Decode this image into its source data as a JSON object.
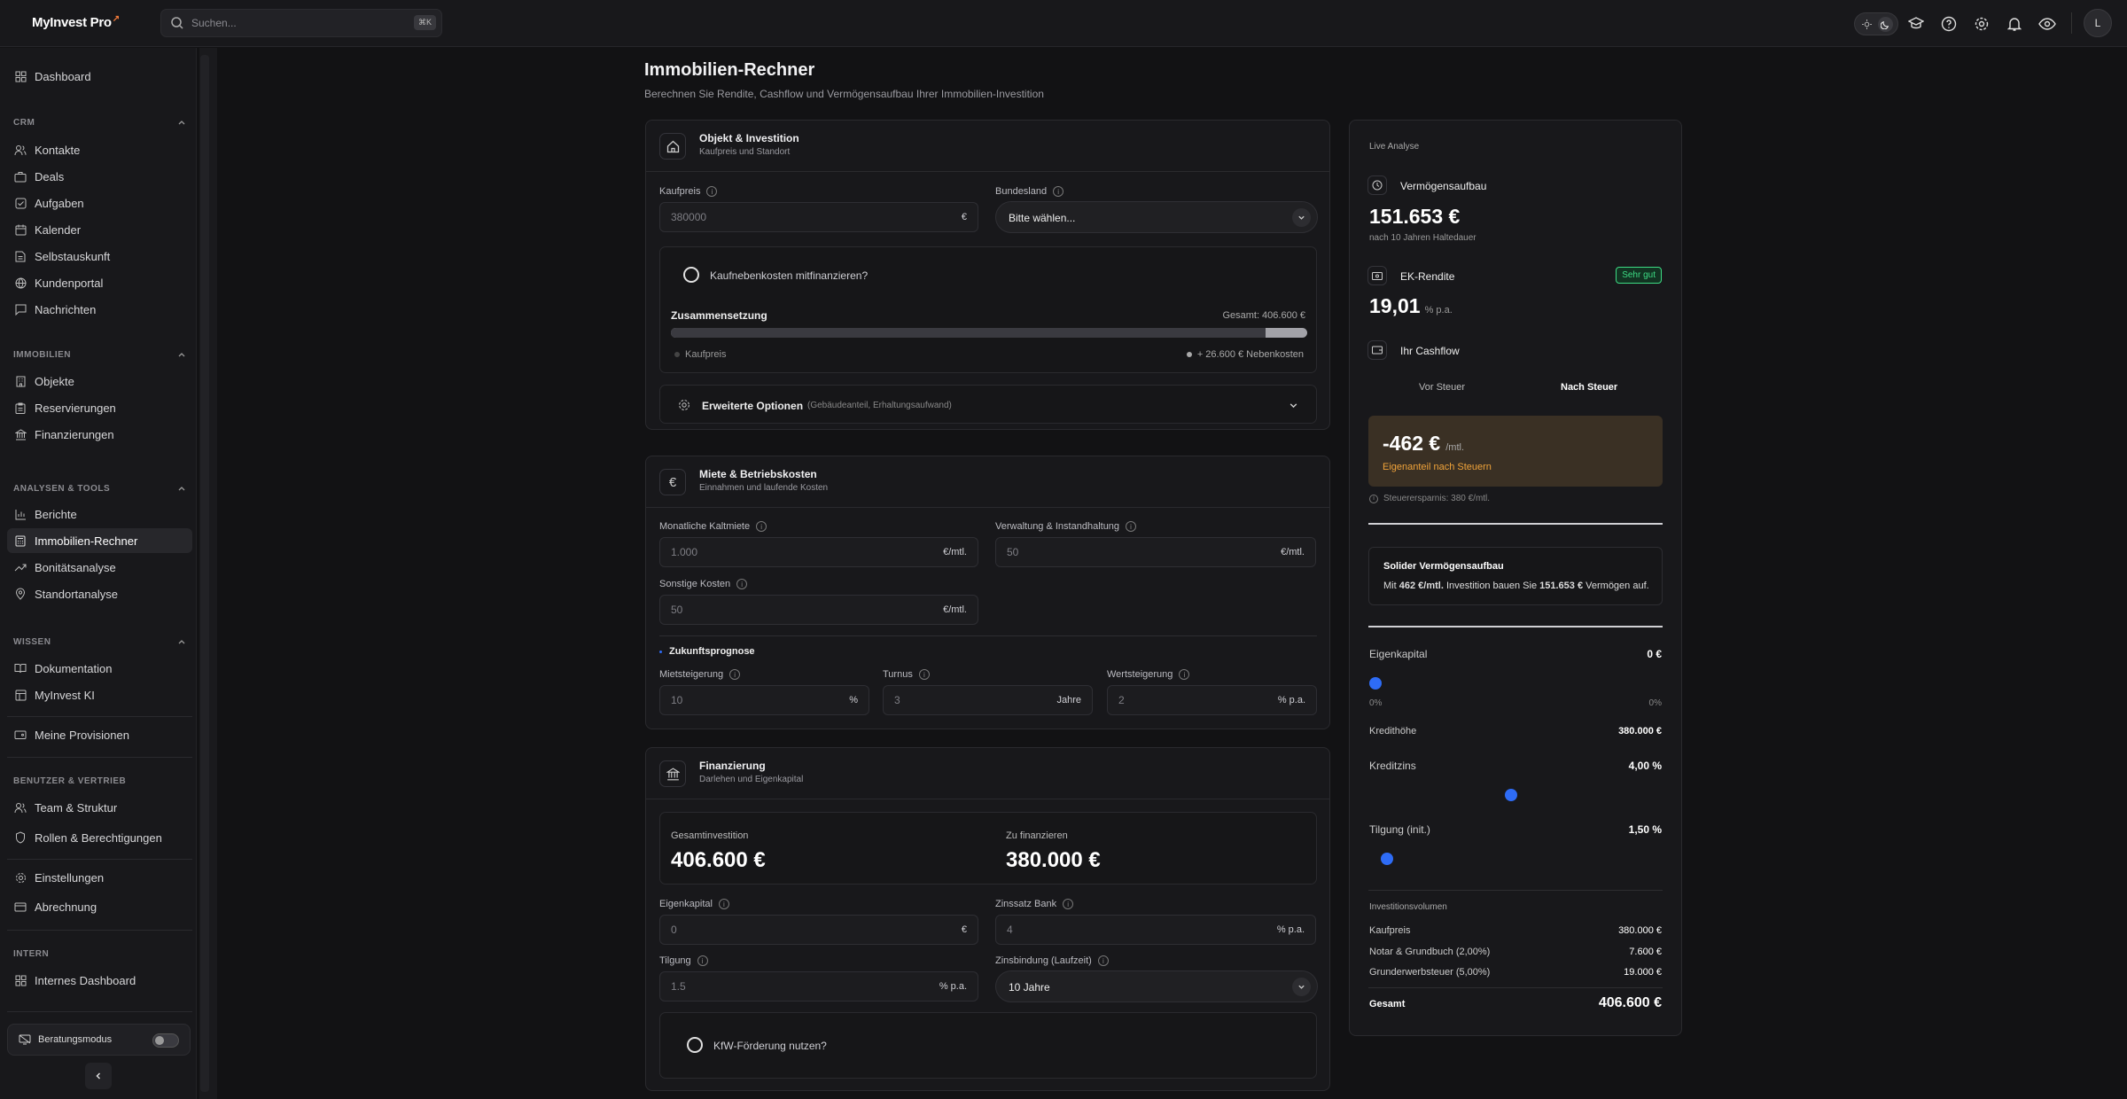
{
  "app": {
    "brand": "MyInvest Pro",
    "brand_mark": "↗"
  },
  "search": {
    "placeholder": "Suchen...",
    "shortcut": "⌘K"
  },
  "user": {
    "initial": "L"
  },
  "sidebar": {
    "dashboard": "Dashboard",
    "sections": {
      "crm": "CRM",
      "immobilien": "IMMOBILIEN",
      "analysen": "ANALYSEN & TOOLS",
      "wissen": "WISSEN",
      "benutzer": "BENUTZER & VERTRIEB",
      "intern": "INTERN"
    },
    "crm": [
      "Kontakte",
      "Deals",
      "Aufgaben",
      "Kalender",
      "Selbstauskunft",
      "Kundenportal",
      "Nachrichten"
    ],
    "immobilien": [
      "Objekte",
      "Reservierungen",
      "Finanzierungen"
    ],
    "analysen": [
      "Berichte",
      "Immobilien-Rechner",
      "Bonitätsanalyse",
      "Standortanalyse"
    ],
    "wissen": [
      "Dokumentation",
      "MyInvest KI"
    ],
    "provisionen": "Meine Provisionen",
    "benutzer": [
      "Team & Struktur",
      "Rollen & Berechtigungen"
    ],
    "einstellungen": "Einstellungen",
    "abrechnung": "Abrechnung",
    "intern": [
      "Internes Dashboard"
    ],
    "beratungsmodus": "Beratungsmodus"
  },
  "page": {
    "title": "Immobilien-Rechner",
    "subtitle": "Berechnen Sie Rendite, Cashflow und Vermögensaufbau Ihrer Immobilien-Investition"
  },
  "objekt": {
    "title": "Objekt & Investition",
    "subtitle": "Kaufpreis und Standort",
    "kaufpreis_label": "Kaufpreis",
    "kaufpreis_value": "380000",
    "kaufpreis_unit": "€",
    "bundesland_label": "Bundesland",
    "bundesland_value": "Bitte wählen...",
    "nebenkosten_toggle": "Kaufnebenkosten mitfinanzieren?",
    "zusammensetzung": "Zusammensetzung",
    "gesamt": "Gesamt: 406.600 €",
    "kaufpreis_share": 0.935,
    "legend_kaufpreis": "Kaufpreis",
    "legend_nebenkosten": "+ 26.600 € Nebenkosten",
    "erweitert": "Erweiterte Optionen",
    "erweitert_hint": "(Gebäudeanteil, Erhaltungsaufwand)"
  },
  "miete": {
    "title": "Miete & Betriebskosten",
    "subtitle": "Einnahmen und laufende Kosten",
    "kaltmiete_label": "Monatliche Kaltmiete",
    "kaltmiete_value": "1.000",
    "kaltmiete_unit": "€/mtl.",
    "verwaltung_label": "Verwaltung & Instandhaltung",
    "verwaltung_value": "50",
    "verwaltung_unit": "€/mtl.",
    "sonstige_label": "Sonstige Kosten",
    "sonstige_value": "50",
    "sonstige_unit": "€/mtl.",
    "prognose": "Zukunftsprognose",
    "mietsteigerung_label": "Mietsteigerung",
    "mietsteigerung_value": "10",
    "mietsteigerung_unit": "%",
    "turnus_label": "Turnus",
    "turnus_value": "3",
    "turnus_unit": "Jahre",
    "wertsteigerung_label": "Wertsteigerung",
    "wertsteigerung_value": "2",
    "wertsteigerung_unit": "% p.a."
  },
  "finanzierung": {
    "title": "Finanzierung",
    "subtitle": "Darlehen und Eigenkapital",
    "gesamt_label": "Gesamtinvestition",
    "gesamt_value": "406.600 €",
    "zufinanzieren_label": "Zu finanzieren",
    "zufinanzieren_value": "380.000 €",
    "ek_label": "Eigenkapital",
    "ek_value": "0",
    "ek_unit": "€",
    "zins_label": "Zinssatz Bank",
    "zins_value": "4",
    "zins_unit": "% p.a.",
    "tilgung_label": "Tilgung",
    "tilgung_value": "1.5",
    "tilgung_unit": "% p.a.",
    "zinsbindung_label": "Zinsbindung (Laufzeit)",
    "zinsbindung_value": "10 Jahre",
    "kfw": "KfW-Förderung nutzen?"
  },
  "analyse": {
    "title": "Live Analyse",
    "vermoegen_label": "Vermögensaufbau",
    "vermoegen_value": "151.653 €",
    "vermoegen_note": "nach 10 Jahren Haltedauer",
    "ek_rendite_label": "EK-Rendite",
    "ek_rendite_badge": "Sehr gut",
    "ek_rendite_value": "19,01",
    "ek_rendite_unit": "% p.a.",
    "cashflow_label": "Ihr Cashflow",
    "tab_vor": "Vor Steuer",
    "tab_nach": "Nach Steuer",
    "cashflow_value": "-462 €",
    "cashflow_unit": "/mtl.",
    "cashflow_note": "Eigenanteil nach Steuern",
    "steuer_note": "Steuerersparnis: 380 €/mtl.",
    "solid_title": "Solider Vermögensaufbau",
    "solid_pre": "Mit",
    "solid_amount": "462 €/mtl.",
    "solid_mid": "Investition bauen Sie",
    "solid_vermoegen": "151.653 €",
    "solid_post": "Vermögen auf.",
    "ek_label": "Eigenkapital",
    "ek_value": "0 €",
    "ek_min": "0%",
    "ek_max": "0%",
    "ek_level": 0,
    "kredit_label": "Kredithöhe",
    "kredit_value": "380.000 €",
    "zins_label": "Kreditzins",
    "zins_value": "4,00 %",
    "zins_level": 0.48,
    "tilgung_label": "Tilgung (init.)",
    "tilgung_value": "1,50 %",
    "tilgung_level": 0.04,
    "volumen_title": "Investitionsvolumen",
    "vol_rows": [
      {
        "label": "Kaufpreis",
        "value": "380.000 €"
      },
      {
        "label": "Notar & Grundbuch (2,00%)",
        "value": "7.600 €"
      },
      {
        "label": "Grunderwerbsteuer (5,00%)",
        "value": "19.000 €"
      }
    ],
    "total_label": "Gesamt",
    "total_value": "406.600 €"
  },
  "colors": {
    "accent": "#2e6cf6",
    "badge": "#3ddc84",
    "warning": "#f0a33a",
    "brand": "#f27a3a"
  }
}
